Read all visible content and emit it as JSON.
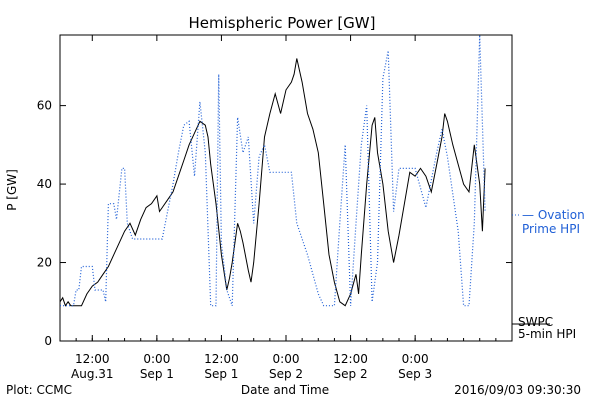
{
  "chart_data": {
    "type": "line",
    "title": "Hemispheric Power [GW]",
    "xlabel": "Date and Time",
    "ylabel": "P [GW]",
    "ylim": [
      0,
      78
    ],
    "yticks": [
      0,
      20,
      40,
      60
    ],
    "xlim": [
      "2016-08-31T06:00",
      "2016-09-03T18:00"
    ],
    "xticks": [
      {
        "t": "2016-08-31T12:00",
        "top": "12:00",
        "bottom": "Aug.31"
      },
      {
        "t": "2016-09-01T00:00",
        "top": "0:00",
        "bottom": "Sep 1"
      },
      {
        "t": "2016-09-01T12:00",
        "top": "12:00",
        "bottom": "Sep 1"
      },
      {
        "t": "2016-09-02T00:00",
        "top": "0:00",
        "bottom": "Sep 2"
      },
      {
        "t": "2016-09-02T12:00",
        "top": "12:00",
        "bottom": "Sep 2"
      },
      {
        "t": "2016-09-03T00:00",
        "top": "0:00",
        "bottom": "Sep 3"
      }
    ],
    "grid": false,
    "series": [
      {
        "name": "5-min HPI",
        "label_lines": [
          "SWPC",
          "5-min HPI"
        ],
        "color": "#000000",
        "style": "solid",
        "points": [
          [
            "2016-08-31T06:00",
            10
          ],
          [
            "2016-08-31T06:30",
            11
          ],
          [
            "2016-08-31T07:00",
            9
          ],
          [
            "2016-08-31T07:30",
            10
          ],
          [
            "2016-08-31T08:00",
            9
          ],
          [
            "2016-08-31T09:00",
            9
          ],
          [
            "2016-08-31T10:00",
            9
          ],
          [
            "2016-08-31T11:00",
            12
          ],
          [
            "2016-08-31T11:30",
            13
          ],
          [
            "2016-08-31T12:00",
            14
          ],
          [
            "2016-08-31T13:00",
            15
          ],
          [
            "2016-08-31T14:00",
            17
          ],
          [
            "2016-08-31T15:00",
            19
          ],
          [
            "2016-08-31T16:00",
            22
          ],
          [
            "2016-08-31T17:00",
            25
          ],
          [
            "2016-08-31T18:00",
            28
          ],
          [
            "2016-08-31T19:00",
            30
          ],
          [
            "2016-08-31T20:00",
            27
          ],
          [
            "2016-08-31T21:00",
            31
          ],
          [
            "2016-08-31T22:00",
            34
          ],
          [
            "2016-08-31T23:00",
            35
          ],
          [
            "2016-09-01T00:00",
            37
          ],
          [
            "2016-09-01T00:30",
            33
          ],
          [
            "2016-09-01T01:00",
            34
          ],
          [
            "2016-09-01T02:00",
            36
          ],
          [
            "2016-09-01T03:00",
            38
          ],
          [
            "2016-09-01T04:00",
            42
          ],
          [
            "2016-09-01T05:00",
            46
          ],
          [
            "2016-09-01T06:00",
            50
          ],
          [
            "2016-09-01T07:00",
            53
          ],
          [
            "2016-09-01T08:00",
            56
          ],
          [
            "2016-09-01T09:00",
            55
          ],
          [
            "2016-09-01T09:30",
            52
          ],
          [
            "2016-09-01T10:00",
            45
          ],
          [
            "2016-09-01T11:00",
            35
          ],
          [
            "2016-09-01T12:00",
            22
          ],
          [
            "2016-09-01T13:00",
            13
          ],
          [
            "2016-09-01T13:30",
            16
          ],
          [
            "2016-09-01T14:00",
            20
          ],
          [
            "2016-09-01T15:00",
            30
          ],
          [
            "2016-09-01T15:30",
            28
          ],
          [
            "2016-09-01T16:00",
            25
          ],
          [
            "2016-09-01T17:00",
            18
          ],
          [
            "2016-09-01T17:30",
            15
          ],
          [
            "2016-09-01T18:00",
            20
          ],
          [
            "2016-09-01T19:00",
            35
          ],
          [
            "2016-09-01T20:00",
            52
          ],
          [
            "2016-09-01T21:00",
            58
          ],
          [
            "2016-09-01T22:00",
            63
          ],
          [
            "2016-09-01T23:00",
            58
          ],
          [
            "2016-09-02T00:00",
            64
          ],
          [
            "2016-09-02T01:00",
            66
          ],
          [
            "2016-09-02T01:30",
            68
          ],
          [
            "2016-09-02T02:00",
            72
          ],
          [
            "2016-09-02T03:00",
            66
          ],
          [
            "2016-09-02T04:00",
            58
          ],
          [
            "2016-09-02T05:00",
            54
          ],
          [
            "2016-09-02T06:00",
            48
          ],
          [
            "2016-09-02T07:00",
            35
          ],
          [
            "2016-09-02T08:00",
            22
          ],
          [
            "2016-09-02T09:00",
            15
          ],
          [
            "2016-09-02T10:00",
            10
          ],
          [
            "2016-09-02T11:00",
            9
          ],
          [
            "2016-09-02T12:00",
            12
          ],
          [
            "2016-09-02T13:00",
            17
          ],
          [
            "2016-09-02T13:30",
            12
          ],
          [
            "2016-09-02T14:00",
            22
          ],
          [
            "2016-09-02T15:00",
            40
          ],
          [
            "2016-09-02T16:00",
            55
          ],
          [
            "2016-09-02T16:30",
            57
          ],
          [
            "2016-09-02T17:00",
            48
          ],
          [
            "2016-09-02T18:00",
            40
          ],
          [
            "2016-09-02T19:00",
            28
          ],
          [
            "2016-09-02T20:00",
            20
          ],
          [
            "2016-09-02T21:00",
            27
          ],
          [
            "2016-09-02T22:00",
            35
          ],
          [
            "2016-09-02T23:00",
            43
          ],
          [
            "2016-09-03T00:00",
            42
          ],
          [
            "2016-09-03T01:00",
            44
          ],
          [
            "2016-09-03T02:00",
            42
          ],
          [
            "2016-09-03T03:00",
            38
          ],
          [
            "2016-09-03T04:00",
            45
          ],
          [
            "2016-09-03T05:00",
            52
          ],
          [
            "2016-09-03T05:30",
            58
          ],
          [
            "2016-09-03T06:00",
            56
          ],
          [
            "2016-09-03T07:00",
            50
          ],
          [
            "2016-09-03T08:00",
            45
          ],
          [
            "2016-09-03T09:00",
            40
          ],
          [
            "2016-09-03T10:00",
            38
          ],
          [
            "2016-09-03T11:00",
            50
          ],
          [
            "2016-09-03T12:00",
            40
          ],
          [
            "2016-09-03T12:30",
            28
          ],
          [
            "2016-09-03T13:00",
            44
          ]
        ]
      },
      {
        "name": "Ovation Prime HPI",
        "label_lines": [
          "— Ovation",
          "Prime HPI"
        ],
        "color": "#1f5fd6",
        "style": "dotted",
        "points": [
          [
            "2016-08-31T06:00",
            9
          ],
          [
            "2016-08-31T08:30",
            9
          ],
          [
            "2016-08-31T09:00",
            13
          ],
          [
            "2016-08-31T09:30",
            13
          ],
          [
            "2016-08-31T10:00",
            19
          ],
          [
            "2016-08-31T12:00",
            19
          ],
          [
            "2016-08-31T12:30",
            13
          ],
          [
            "2016-08-31T14:00",
            13
          ],
          [
            "2016-08-31T14:30",
            10
          ],
          [
            "2016-08-31T15:00",
            35
          ],
          [
            "2016-08-31T16:00",
            35
          ],
          [
            "2016-08-31T16:30",
            31
          ],
          [
            "2016-08-31T17:30",
            44
          ],
          [
            "2016-08-31T18:00",
            44
          ],
          [
            "2016-08-31T18:30",
            30
          ],
          [
            "2016-08-31T19:30",
            26
          ],
          [
            "2016-09-01T00:00",
            26
          ],
          [
            "2016-09-01T01:00",
            26
          ],
          [
            "2016-09-01T02:00",
            33
          ],
          [
            "2016-09-01T03:00",
            40
          ],
          [
            "2016-09-01T04:00",
            48
          ],
          [
            "2016-09-01T05:00",
            55
          ],
          [
            "2016-09-01T06:00",
            56
          ],
          [
            "2016-09-01T07:00",
            42
          ],
          [
            "2016-09-01T08:00",
            61
          ],
          [
            "2016-09-01T09:00",
            48
          ],
          [
            "2016-09-01T10:00",
            9
          ],
          [
            "2016-09-01T11:00",
            9
          ],
          [
            "2016-09-01T11:30",
            68
          ],
          [
            "2016-09-01T12:00",
            25
          ],
          [
            "2016-09-01T13:00",
            13
          ],
          [
            "2016-09-01T14:00",
            9
          ],
          [
            "2016-09-01T15:00",
            57
          ],
          [
            "2016-09-01T16:00",
            48
          ],
          [
            "2016-09-01T17:00",
            52
          ],
          [
            "2016-09-01T18:00",
            30
          ],
          [
            "2016-09-01T19:00",
            47
          ],
          [
            "2016-09-01T20:00",
            50
          ],
          [
            "2016-09-01T21:00",
            43
          ],
          [
            "2016-09-02T00:00",
            43
          ],
          [
            "2016-09-02T01:00",
            43
          ],
          [
            "2016-09-02T02:00",
            30
          ],
          [
            "2016-09-02T04:00",
            22
          ],
          [
            "2016-09-02T06:00",
            12
          ],
          [
            "2016-09-02T07:00",
            9
          ],
          [
            "2016-09-02T09:00",
            9
          ],
          [
            "2016-09-02T10:00",
            30
          ],
          [
            "2016-09-02T11:00",
            50
          ],
          [
            "2016-09-02T12:00",
            9
          ],
          [
            "2016-09-02T13:00",
            30
          ],
          [
            "2016-09-02T14:00",
            50
          ],
          [
            "2016-09-02T15:00",
            60
          ],
          [
            "2016-09-02T16:00",
            10
          ],
          [
            "2016-09-02T17:00",
            20
          ],
          [
            "2016-09-02T18:00",
            67
          ],
          [
            "2016-09-02T19:00",
            74
          ],
          [
            "2016-09-02T20:00",
            33
          ],
          [
            "2016-09-02T21:00",
            44
          ],
          [
            "2016-09-02T23:00",
            44
          ],
          [
            "2016-09-03T00:00",
            44
          ],
          [
            "2016-09-03T02:00",
            34
          ],
          [
            "2016-09-03T04:00",
            48
          ],
          [
            "2016-09-03T05:00",
            54
          ],
          [
            "2016-09-03T06:00",
            47
          ],
          [
            "2016-09-03T08:00",
            28
          ],
          [
            "2016-09-03T09:00",
            9
          ],
          [
            "2016-09-03T10:00",
            9
          ],
          [
            "2016-09-03T11:00",
            30
          ],
          [
            "2016-09-03T12:00",
            78
          ],
          [
            "2016-09-03T13:00",
            33
          ]
        ]
      }
    ]
  },
  "footer": {
    "left": "Plot: CCMC",
    "right": "2016/09/03 09:30:30"
  }
}
